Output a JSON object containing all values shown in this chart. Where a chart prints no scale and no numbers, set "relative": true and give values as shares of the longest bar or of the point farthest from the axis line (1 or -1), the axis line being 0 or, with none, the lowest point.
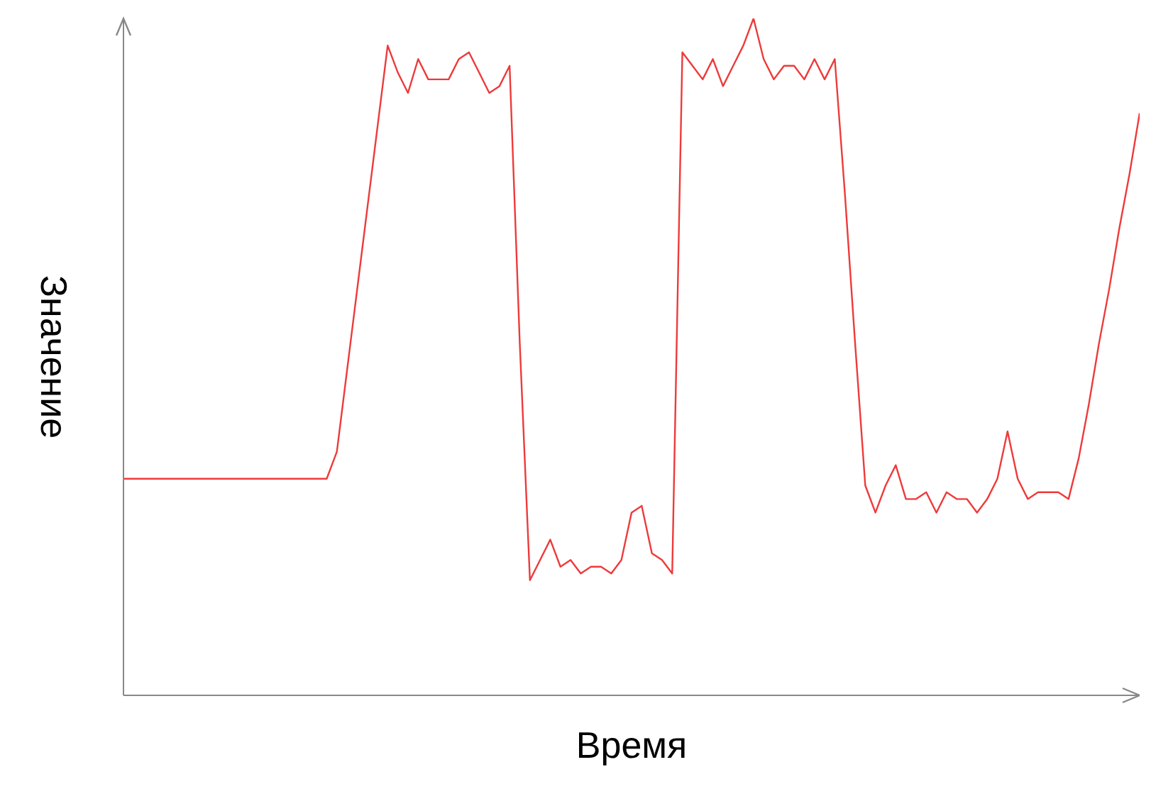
{
  "chart_data": {
    "type": "line",
    "xlabel": "Время",
    "ylabel": "Значение",
    "relative": true,
    "categories": [
      null,
      null,
      null,
      null,
      null,
      null,
      null,
      null,
      null,
      null,
      null,
      null,
      null,
      null,
      null,
      null,
      null,
      null,
      null,
      null,
      null,
      null,
      null,
      null,
      null,
      null,
      null,
      null,
      null,
      null,
      null,
      null,
      null,
      null,
      null,
      null,
      null,
      null,
      null,
      null,
      null,
      null,
      null,
      null,
      null,
      null,
      null,
      null,
      null,
      null,
      null,
      null,
      null,
      null,
      null,
      null,
      null,
      null,
      null,
      null,
      null,
      null,
      null,
      null,
      null,
      null,
      null,
      null,
      null,
      null,
      null,
      null,
      null,
      null,
      null,
      null,
      null,
      null,
      null,
      null,
      null,
      null,
      null,
      null,
      null,
      null,
      null,
      null,
      null,
      null,
      null,
      null,
      null,
      null,
      null,
      null,
      null,
      null,
      null,
      null,
      null
    ],
    "series": [
      {
        "color": "#ee3a3a",
        "values": [
          0.32,
          0.32,
          0.32,
          0.32,
          0.32,
          0.32,
          0.32,
          0.32,
          0.32,
          0.32,
          0.32,
          0.32,
          0.32,
          0.32,
          0.32,
          0.32,
          0.32,
          0.32,
          0.32,
          0.32,
          0.32,
          0.36,
          0.48,
          0.6,
          0.72,
          0.84,
          0.96,
          0.92,
          0.89,
          0.94,
          0.91,
          0.91,
          0.91,
          0.94,
          0.95,
          0.92,
          0.89,
          0.9,
          0.93,
          0.52,
          0.17,
          0.2,
          0.23,
          0.19,
          0.2,
          0.18,
          0.19,
          0.19,
          0.18,
          0.2,
          0.27,
          0.28,
          0.21,
          0.2,
          0.18,
          0.95,
          0.93,
          0.91,
          0.94,
          0.9,
          0.93,
          0.96,
          1,
          0.94,
          0.91,
          0.93,
          0.93,
          0.91,
          0.94,
          0.91,
          0.94,
          0.74,
          0.52,
          0.31,
          0.27,
          0.31,
          0.34,
          0.29,
          0.29,
          0.3,
          0.27,
          0.3,
          0.29,
          0.29,
          0.27,
          0.29,
          0.32,
          0.39,
          0.32,
          0.29,
          0.3,
          0.3,
          0.3,
          0.29,
          0.35,
          0.43,
          0.52,
          0.6,
          0.69,
          0.77,
          0.86
        ]
      }
    ]
  }
}
